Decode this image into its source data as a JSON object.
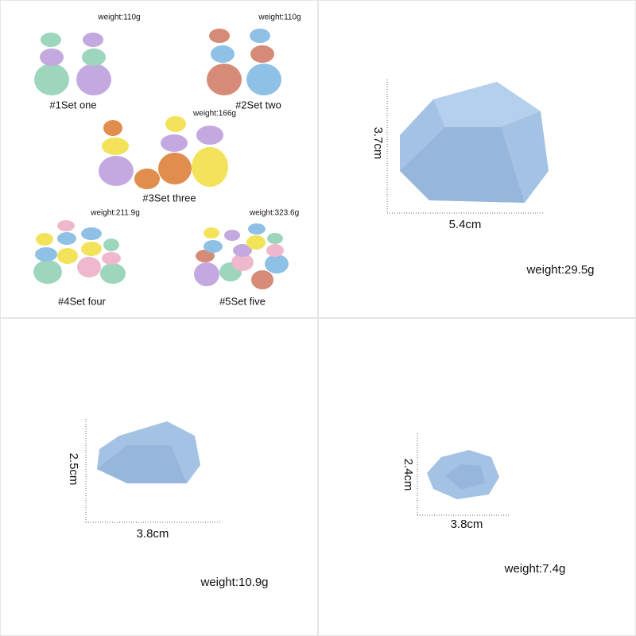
{
  "sets": [
    {
      "label": "#1Set one",
      "weight": "weight:110g"
    },
    {
      "label": "#2Set two",
      "weight": "weight:110g"
    },
    {
      "label": "#3Set three",
      "weight": "weight:166g"
    },
    {
      "label": "#4Set four",
      "weight": "weight:211.9g"
    },
    {
      "label": "#5Set five",
      "weight": "weight:323.6g"
    }
  ],
  "stones": [
    {
      "height": "3.7cm",
      "width": "5.4cm",
      "weight": "weight:29.5g"
    },
    {
      "height": "2.5cm",
      "width": "3.8cm",
      "weight": "weight:10.9g"
    },
    {
      "height": "2.4cm",
      "width": "3.8cm",
      "weight": "weight:7.4g"
    }
  ]
}
